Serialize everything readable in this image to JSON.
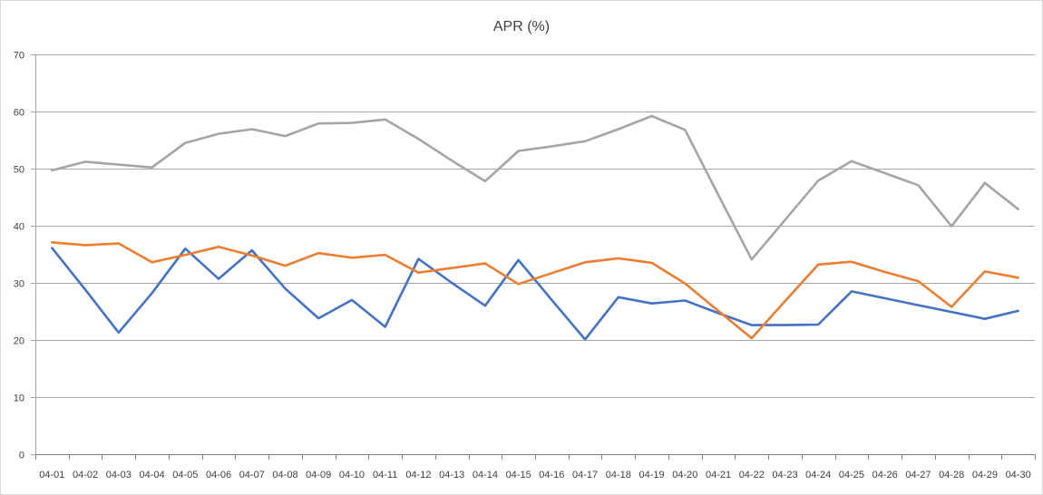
{
  "chart_data": {
    "type": "line",
    "title": "APR (%)",
    "xlabel": "",
    "ylabel": "",
    "ylim": [
      0,
      70
    ],
    "yticks": [
      0,
      10,
      20,
      30,
      40,
      50,
      60,
      70
    ],
    "grid": true,
    "legend": "none",
    "categories": [
      "04-01",
      "04-02",
      "04-03",
      "04-04",
      "04-05",
      "04-06",
      "04-07",
      "04-08",
      "04-09",
      "04-10",
      "04-11",
      "04-12",
      "04-13",
      "04-14",
      "04-15",
      "04-16",
      "04-17",
      "04-18",
      "04-19",
      "04-20",
      "04-21",
      "04-22",
      "04-23",
      "04-24",
      "04-25",
      "04-26",
      "04-27",
      "04-28",
      "04-29",
      "04-30"
    ],
    "series": [
      {
        "color": "#4472c4",
        "values": [
          36.1,
          28.8,
          21.3,
          28.2,
          36.0,
          30.7,
          35.7,
          29.0,
          23.8,
          27.0,
          22.3,
          34.2,
          30.0,
          26.0,
          34.0,
          27.0,
          20.1,
          27.5,
          26.4,
          26.9,
          24.7,
          22.6,
          22.6,
          22.7,
          28.5,
          27.3,
          26.1,
          24.9,
          23.7,
          25.1
        ]
      },
      {
        "color": "#ed7d31",
        "values": [
          37.1,
          36.6,
          36.9,
          33.6,
          34.9,
          36.3,
          34.8,
          33.0,
          35.2,
          34.4,
          34.9,
          31.8,
          32.6,
          33.4,
          29.8,
          31.7,
          33.6,
          34.3,
          33.5,
          29.9,
          25.1,
          20.3,
          26.8,
          33.2,
          33.7,
          31.9,
          30.3,
          25.8,
          32.0,
          30.9
        ]
      },
      {
        "color": "#a5a5a5",
        "values": [
          49.7,
          51.2,
          50.7,
          50.2,
          54.5,
          56.1,
          56.9,
          55.7,
          57.9,
          58.0,
          58.6,
          55.2,
          51.4,
          47.8,
          53.1,
          53.9,
          54.8,
          56.9,
          59.2,
          56.8,
          45.4,
          34.1,
          41.0,
          47.9,
          51.3,
          49.2,
          47.1,
          39.9,
          47.5,
          42.9
        ]
      }
    ]
  }
}
